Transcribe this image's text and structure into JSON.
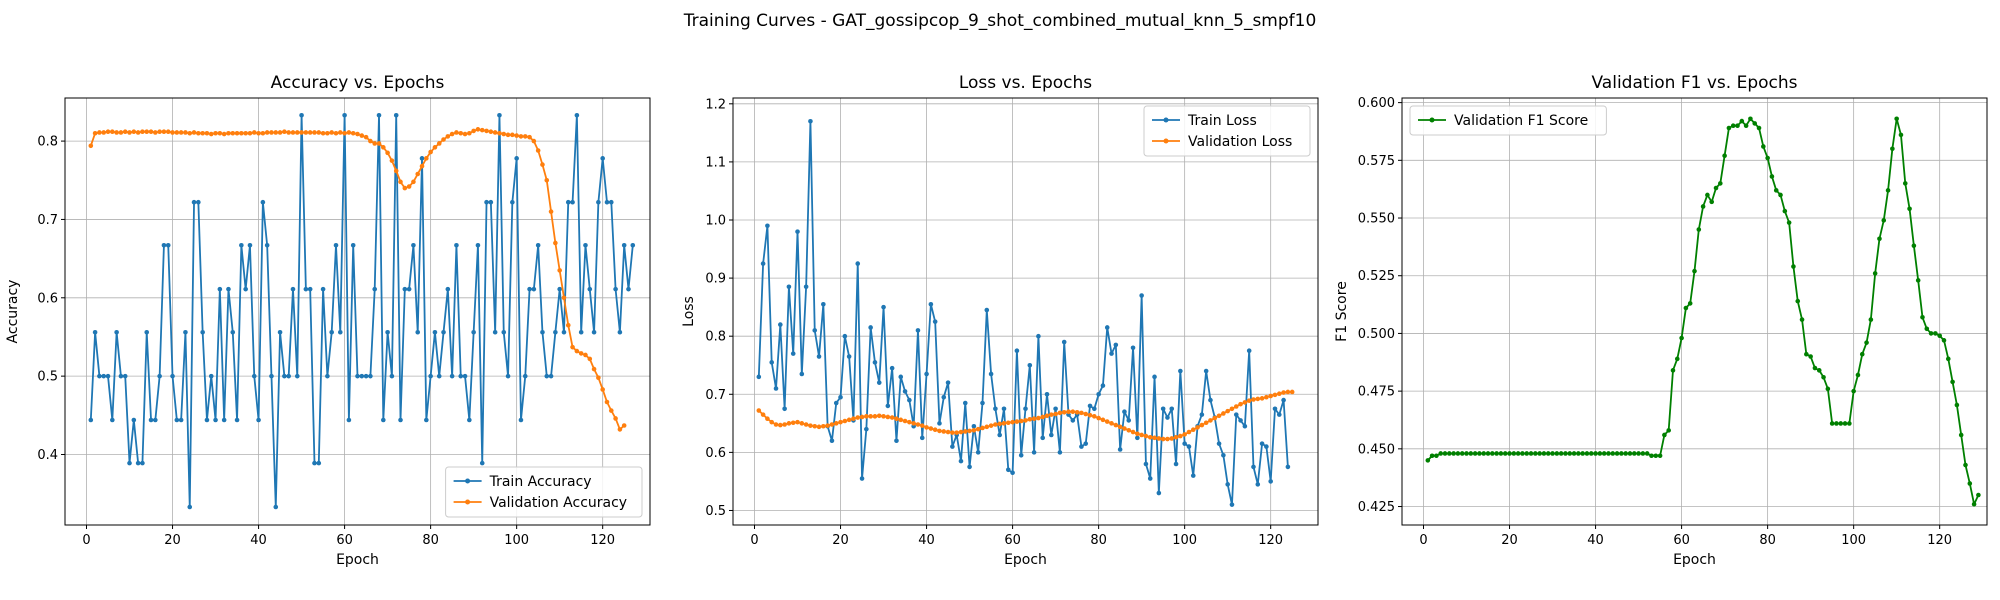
{
  "figure": {
    "suptitle": "Training Curves - GAT_gossipcop_9_shot_combined_mutual_knn_5_smpf10"
  },
  "chart_data": [
    {
      "type": "line",
      "title": "Accuracy vs. Epochs",
      "xlabel": "Epoch",
      "ylabel": "Accuracy",
      "xlim": [
        -5,
        131
      ],
      "ylim": [
        0.31,
        0.855
      ],
      "xticks": [
        0,
        20,
        40,
        60,
        80,
        100,
        120
      ],
      "yticks": [
        0.4,
        0.5,
        0.6,
        0.7,
        0.8
      ],
      "ytick_labels": [
        "0.4",
        "0.5",
        "0.6",
        "0.7",
        "0.8"
      ],
      "grid": true,
      "legend_position": "lower-right",
      "series": [
        {
          "name": "Train Accuracy",
          "color": "#1f77b4",
          "x_start": 1,
          "values": [
            0.444,
            0.556,
            0.5,
            0.5,
            0.5,
            0.444,
            0.556,
            0.5,
            0.5,
            0.389,
            0.444,
            0.389,
            0.389,
            0.556,
            0.444,
            0.444,
            0.5,
            0.667,
            0.667,
            0.5,
            0.444,
            0.444,
            0.556,
            0.333,
            0.722,
            0.722,
            0.556,
            0.444,
            0.5,
            0.444,
            0.611,
            0.444,
            0.611,
            0.556,
            0.444,
            0.667,
            0.611,
            0.667,
            0.5,
            0.444,
            0.722,
            0.667,
            0.5,
            0.333,
            0.556,
            0.5,
            0.5,
            0.611,
            0.5,
            0.833,
            0.611,
            0.611,
            0.389,
            0.389,
            0.611,
            0.5,
            0.556,
            0.667,
            0.556,
            0.833,
            0.444,
            0.667,
            0.5,
            0.5,
            0.5,
            0.5,
            0.611,
            0.833,
            0.444,
            0.556,
            0.5,
            0.833,
            0.444,
            0.611,
            0.611,
            0.667,
            0.556,
            0.778,
            0.444,
            0.5,
            0.556,
            0.5,
            0.556,
            0.611,
            0.5,
            0.667,
            0.5,
            0.5,
            0.444,
            0.556,
            0.667,
            0.389,
            0.722,
            0.722,
            0.556,
            0.833,
            0.556,
            0.5,
            0.722,
            0.778,
            0.444,
            0.5,
            0.611,
            0.611,
            0.667,
            0.556,
            0.5,
            0.5,
            0.556,
            0.611,
            0.556,
            0.722,
            0.722,
            0.833,
            0.556,
            0.667,
            0.611,
            0.556,
            0.722,
            0.778,
            0.722,
            0.722,
            0.611,
            0.556,
            0.667,
            0.611,
            0.667
          ]
        },
        {
          "name": "Validation Accuracy",
          "color": "#ff7f0e",
          "x_start": 1,
          "values": [
            0.794,
            0.81,
            0.811,
            0.811,
            0.812,
            0.812,
            0.811,
            0.811,
            0.812,
            0.811,
            0.812,
            0.811,
            0.812,
            0.812,
            0.812,
            0.811,
            0.812,
            0.812,
            0.812,
            0.811,
            0.811,
            0.811,
            0.811,
            0.81,
            0.811,
            0.81,
            0.81,
            0.81,
            0.809,
            0.81,
            0.81,
            0.809,
            0.81,
            0.81,
            0.81,
            0.81,
            0.81,
            0.81,
            0.811,
            0.81,
            0.81,
            0.811,
            0.811,
            0.811,
            0.811,
            0.812,
            0.811,
            0.811,
            0.811,
            0.811,
            0.811,
            0.811,
            0.811,
            0.811,
            0.81,
            0.81,
            0.811,
            0.81,
            0.811,
            0.81,
            0.811,
            0.81,
            0.809,
            0.807,
            0.805,
            0.8,
            0.797,
            0.797,
            0.792,
            0.785,
            0.775,
            0.762,
            0.748,
            0.74,
            0.742,
            0.748,
            0.758,
            0.768,
            0.778,
            0.786,
            0.792,
            0.797,
            0.802,
            0.806,
            0.809,
            0.811,
            0.81,
            0.809,
            0.81,
            0.813,
            0.815,
            0.814,
            0.813,
            0.812,
            0.811,
            0.81,
            0.809,
            0.808,
            0.808,
            0.807,
            0.806,
            0.806,
            0.805,
            0.8,
            0.788,
            0.77,
            0.75,
            0.71,
            0.67,
            0.635,
            0.6,
            0.565,
            0.537,
            0.532,
            0.529,
            0.527,
            0.522,
            0.509,
            0.498,
            0.483,
            0.467,
            0.456,
            0.446,
            0.432,
            0.437
          ]
        }
      ]
    },
    {
      "type": "line",
      "title": "Loss vs. Epochs",
      "xlabel": "Epoch",
      "ylabel": "Loss",
      "xlim": [
        -5,
        131
      ],
      "ylim": [
        0.475,
        1.21
      ],
      "xticks": [
        0,
        20,
        40,
        60,
        80,
        100,
        120
      ],
      "yticks": [
        0.5,
        0.6,
        0.7,
        0.8,
        0.9,
        1.0,
        1.1,
        1.2
      ],
      "ytick_labels": [
        "0.5",
        "0.6",
        "0.7",
        "0.8",
        "0.9",
        "1.0",
        "1.1",
        "1.2"
      ],
      "grid": true,
      "legend_position": "upper-right",
      "series": [
        {
          "name": "Train Loss",
          "color": "#1f77b4",
          "x_start": 1,
          "values": [
            0.73,
            0.925,
            0.99,
            0.755,
            0.71,
            0.82,
            0.675,
            0.885,
            0.77,
            0.98,
            0.735,
            0.885,
            1.17,
            0.81,
            0.765,
            0.855,
            0.645,
            0.62,
            0.685,
            0.695,
            0.8,
            0.765,
            0.655,
            0.925,
            0.555,
            0.64,
            0.815,
            0.755,
            0.72,
            0.85,
            0.68,
            0.745,
            0.62,
            0.73,
            0.705,
            0.69,
            0.645,
            0.81,
            0.625,
            0.735,
            0.855,
            0.825,
            0.65,
            0.695,
            0.72,
            0.61,
            0.63,
            0.585,
            0.685,
            0.575,
            0.645,
            0.6,
            0.685,
            0.845,
            0.735,
            0.675,
            0.63,
            0.675,
            0.57,
            0.565,
            0.775,
            0.595,
            0.675,
            0.75,
            0.6,
            0.8,
            0.625,
            0.7,
            0.63,
            0.675,
            0.6,
            0.79,
            0.665,
            0.655,
            0.665,
            0.61,
            0.615,
            0.68,
            0.675,
            0.7,
            0.715,
            0.815,
            0.77,
            0.785,
            0.605,
            0.67,
            0.655,
            0.78,
            0.625,
            0.87,
            0.58,
            0.555,
            0.73,
            0.53,
            0.675,
            0.66,
            0.675,
            0.58,
            0.74,
            0.615,
            0.61,
            0.56,
            0.645,
            0.665,
            0.74,
            0.69,
            0.66,
            0.615,
            0.595,
            0.545,
            0.51,
            0.665,
            0.655,
            0.645,
            0.775,
            0.575,
            0.545,
            0.615,
            0.61,
            0.55,
            0.675,
            0.665,
            0.69,
            0.575
          ]
        },
        {
          "name": "Validation Loss",
          "color": "#ff7f0e",
          "x_start": 1,
          "values": [
            0.672,
            0.665,
            0.658,
            0.652,
            0.648,
            0.647,
            0.648,
            0.65,
            0.651,
            0.652,
            0.65,
            0.648,
            0.646,
            0.645,
            0.644,
            0.645,
            0.646,
            0.648,
            0.65,
            0.652,
            0.654,
            0.656,
            0.658,
            0.66,
            0.661,
            0.662,
            0.662,
            0.662,
            0.663,
            0.662,
            0.661,
            0.66,
            0.658,
            0.656,
            0.654,
            0.652,
            0.65,
            0.648,
            0.646,
            0.643,
            0.641,
            0.639,
            0.637,
            0.636,
            0.635,
            0.634,
            0.634,
            0.635,
            0.636,
            0.637,
            0.638,
            0.64,
            0.642,
            0.644,
            0.646,
            0.648,
            0.649,
            0.65,
            0.651,
            0.652,
            0.653,
            0.654,
            0.655,
            0.657,
            0.658,
            0.659,
            0.661,
            0.663,
            0.665,
            0.666,
            0.668,
            0.669,
            0.67,
            0.67,
            0.669,
            0.668,
            0.666,
            0.664,
            0.662,
            0.659,
            0.656,
            0.653,
            0.65,
            0.647,
            0.644,
            0.641,
            0.638,
            0.635,
            0.632,
            0.63,
            0.628,
            0.626,
            0.625,
            0.624,
            0.623,
            0.623,
            0.624,
            0.626,
            0.628,
            0.631,
            0.635,
            0.639,
            0.643,
            0.647,
            0.651,
            0.655,
            0.659,
            0.663,
            0.667,
            0.671,
            0.675,
            0.679,
            0.683,
            0.686,
            0.689,
            0.691,
            0.692,
            0.693,
            0.695,
            0.697,
            0.699,
            0.701,
            0.703,
            0.704,
            0.704
          ]
        }
      ]
    },
    {
      "type": "line",
      "title": "Validation F1 vs. Epochs",
      "xlabel": "Epoch",
      "ylabel": "F1 Score",
      "xlim": [
        -5,
        131
      ],
      "ylim": [
        0.417,
        0.602
      ],
      "xticks": [
        0,
        20,
        40,
        60,
        80,
        100,
        120
      ],
      "yticks": [
        0.425,
        0.45,
        0.475,
        0.5,
        0.525,
        0.55,
        0.575,
        0.6
      ],
      "ytick_labels": [
        "0.425",
        "0.450",
        "0.475",
        "0.500",
        "0.525",
        "0.550",
        "0.575",
        "0.600"
      ],
      "grid": true,
      "legend_position": "upper-left",
      "series": [
        {
          "name": "Validation F1 Score",
          "color": "#008000",
          "x_start": 1,
          "values": [
            0.445,
            0.447,
            0.447,
            0.448,
            0.448,
            0.448,
            0.448,
            0.448,
            0.448,
            0.448,
            0.448,
            0.448,
            0.448,
            0.448,
            0.448,
            0.448,
            0.448,
            0.448,
            0.448,
            0.448,
            0.448,
            0.448,
            0.448,
            0.448,
            0.448,
            0.448,
            0.448,
            0.448,
            0.448,
            0.448,
            0.448,
            0.448,
            0.448,
            0.448,
            0.448,
            0.448,
            0.448,
            0.448,
            0.448,
            0.448,
            0.448,
            0.448,
            0.448,
            0.448,
            0.448,
            0.448,
            0.448,
            0.448,
            0.448,
            0.448,
            0.448,
            0.448,
            0.447,
            0.447,
            0.447,
            0.456,
            0.458,
            0.484,
            0.489,
            0.498,
            0.511,
            0.513,
            0.527,
            0.545,
            0.555,
            0.56,
            0.557,
            0.563,
            0.565,
            0.577,
            0.589,
            0.59,
            0.59,
            0.592,
            0.59,
            0.593,
            0.591,
            0.589,
            0.581,
            0.576,
            0.568,
            0.562,
            0.56,
            0.553,
            0.548,
            0.529,
            0.514,
            0.506,
            0.491,
            0.49,
            0.485,
            0.484,
            0.481,
            0.476,
            0.461,
            0.461,
            0.461,
            0.461,
            0.461,
            0.475,
            0.482,
            0.491,
            0.496,
            0.506,
            0.526,
            0.541,
            0.549,
            0.562,
            0.58,
            0.593,
            0.586,
            0.565,
            0.554,
            0.538,
            0.523,
            0.507,
            0.502,
            0.5,
            0.5,
            0.499,
            0.497,
            0.489,
            0.479,
            0.469,
            0.456,
            0.443,
            0.435,
            0.426,
            0.43
          ]
        }
      ]
    }
  ]
}
